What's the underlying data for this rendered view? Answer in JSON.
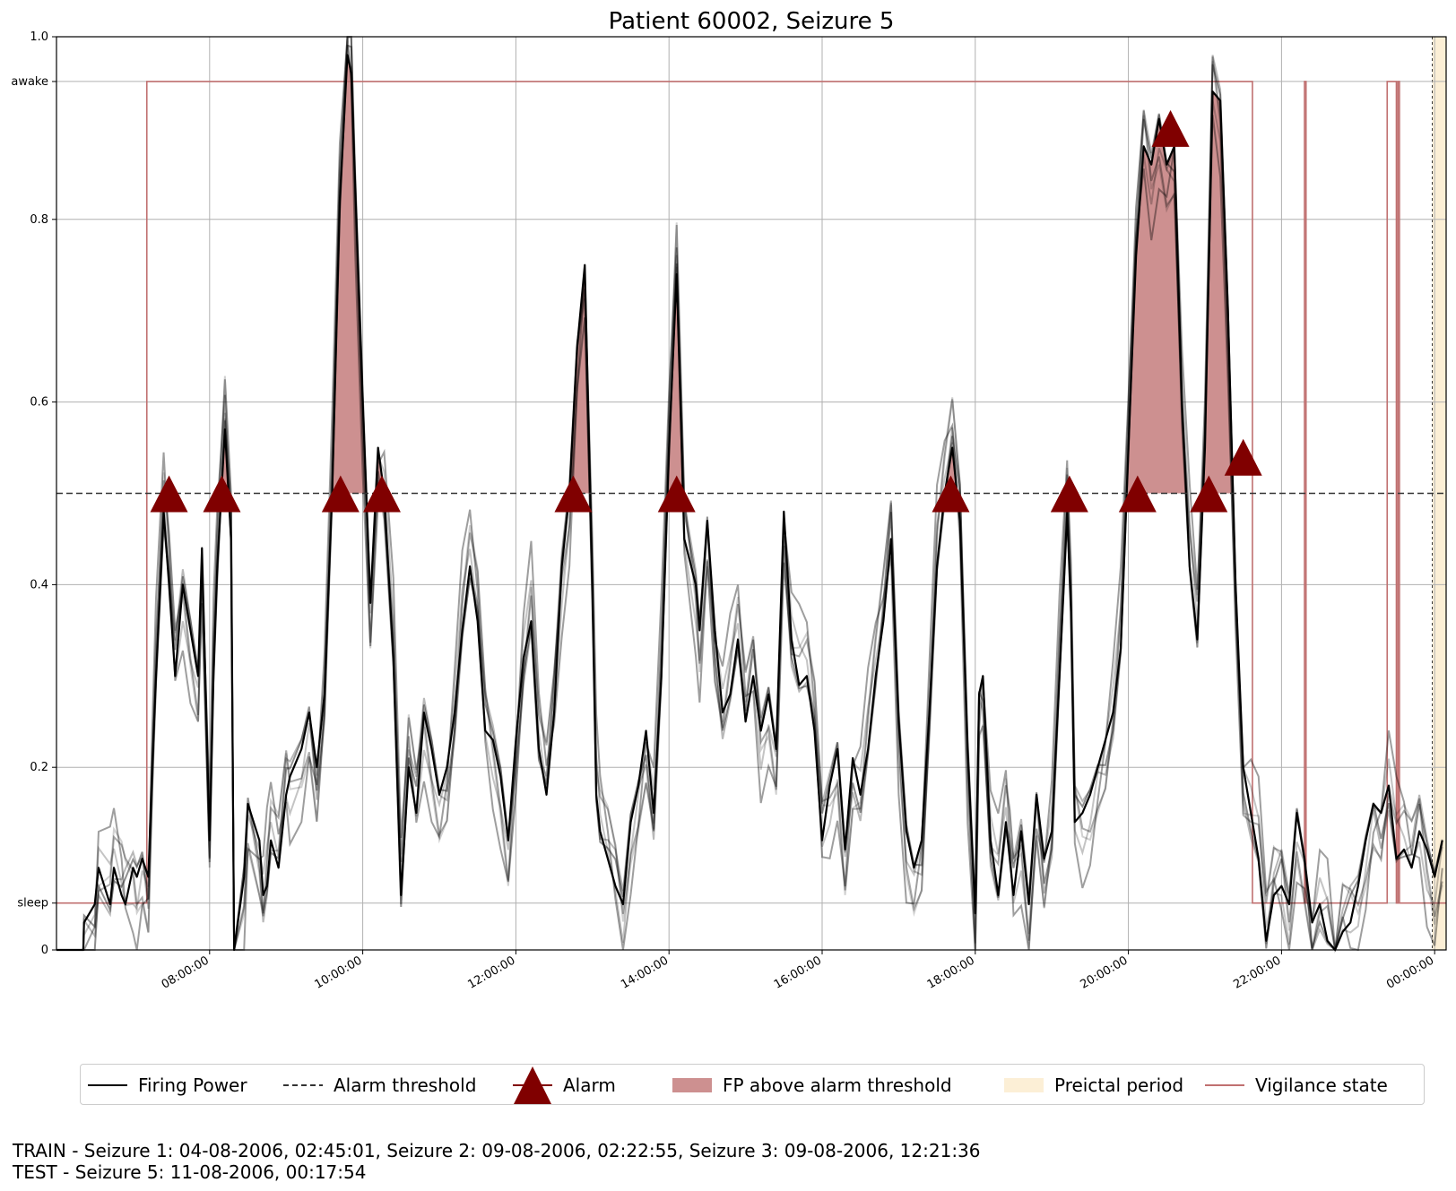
{
  "chart_data": {
    "type": "line",
    "title": "Patient 60002, Seizure 5",
    "ylim": [
      0,
      1
    ],
    "y_ticks": [
      {
        "value": 0,
        "label": "0"
      },
      {
        "value": 0.0513,
        "label": "sleep"
      },
      {
        "value": 0.2,
        "label": "0.2"
      },
      {
        "value": 0.4,
        "label": "0.4"
      },
      {
        "value": 0.6,
        "label": "0.6"
      },
      {
        "value": 0.8,
        "label": "0.8"
      },
      {
        "value": 0.951,
        "label": "awake"
      },
      {
        "value": 1.0,
        "label": "1.0"
      }
    ],
    "xlim_hours": [
      6.0,
      24.15
    ],
    "x_ticks": [
      {
        "value": 8,
        "label": "08:00:00"
      },
      {
        "value": 10,
        "label": "10:00:00"
      },
      {
        "value": 12,
        "label": "12:00:00"
      },
      {
        "value": 14,
        "label": "14:00:00"
      },
      {
        "value": 16,
        "label": "16:00:00"
      },
      {
        "value": 18,
        "label": "18:00:00"
      },
      {
        "value": 20,
        "label": "20:00:00"
      },
      {
        "value": 22,
        "label": "22:00:00"
      },
      {
        "value": 24,
        "label": "00:00:00"
      }
    ],
    "grid": true,
    "legend_position": "bottom",
    "alarm_threshold": 0.5,
    "preictal_period_hours": [
      23.97,
      24.15
    ],
    "firing_power": {
      "name": "Firing Power",
      "x_hours": [
        6.0,
        6.35,
        6.36,
        6.5,
        6.55,
        6.7,
        6.75,
        6.85,
        6.9,
        7.0,
        7.05,
        7.12,
        7.2,
        7.25,
        7.3,
        7.4,
        7.47,
        7.55,
        7.65,
        7.75,
        7.85,
        7.9,
        8.0,
        8.05,
        8.1,
        8.2,
        8.28,
        8.32,
        8.45,
        8.5,
        8.65,
        8.7,
        8.75,
        8.8,
        8.9,
        9.0,
        9.05,
        9.2,
        9.3,
        9.4,
        9.5,
        9.6,
        9.7,
        9.8,
        9.85,
        9.9,
        10.0,
        10.1,
        10.2,
        10.28,
        10.4,
        10.5,
        10.6,
        10.7,
        10.8,
        10.9,
        11.0,
        11.1,
        11.2,
        11.3,
        11.4,
        11.5,
        11.6,
        11.7,
        11.8,
        11.9,
        12.0,
        12.1,
        12.2,
        12.3,
        12.4,
        12.5,
        12.6,
        12.7,
        12.8,
        12.9,
        13.0,
        13.05,
        13.1,
        13.2,
        13.3,
        13.4,
        13.5,
        13.6,
        13.7,
        13.8,
        13.9,
        14.0,
        14.1,
        14.2,
        14.35,
        14.4,
        14.5,
        14.6,
        14.7,
        14.8,
        14.9,
        15.0,
        15.1,
        15.2,
        15.3,
        15.4,
        15.5,
        15.6,
        15.7,
        15.8,
        15.9,
        16.0,
        16.1,
        16.2,
        16.3,
        16.4,
        16.5,
        16.6,
        16.7,
        16.8,
        16.9,
        17.0,
        17.1,
        17.2,
        17.3,
        17.4,
        17.5,
        17.6,
        17.7,
        17.8,
        17.9,
        18.0,
        18.05,
        18.1,
        18.2,
        18.3,
        18.4,
        18.45,
        18.5,
        18.6,
        18.7,
        18.8,
        18.9,
        19.0,
        19.1,
        19.2,
        19.25,
        19.3,
        19.4,
        19.5,
        19.6,
        19.7,
        19.8,
        19.9,
        20.0,
        20.1,
        20.2,
        20.3,
        20.4,
        20.5,
        20.6,
        20.7,
        20.8,
        20.9,
        21.0,
        21.1,
        21.2,
        21.3,
        21.4,
        21.5,
        21.6,
        21.7,
        21.8,
        21.9,
        22.0,
        22.1,
        22.2,
        22.3,
        22.4,
        22.5,
        22.6,
        22.7,
        22.8,
        22.9,
        23.0,
        23.1,
        23.2,
        23.3,
        23.4,
        23.5,
        23.6,
        23.7,
        23.8,
        23.9,
        24.0,
        24.1
      ],
      "values": [
        0.0,
        0.0,
        0.03,
        0.05,
        0.09,
        0.05,
        0.09,
        0.06,
        0.05,
        0.09,
        0.08,
        0.1,
        0.08,
        0.2,
        0.3,
        0.48,
        0.4,
        0.3,
        0.4,
        0.35,
        0.3,
        0.44,
        0.12,
        0.3,
        0.42,
        0.57,
        0.45,
        0.0,
        0.08,
        0.16,
        0.12,
        0.06,
        0.07,
        0.12,
        0.09,
        0.17,
        0.19,
        0.22,
        0.26,
        0.2,
        0.28,
        0.5,
        0.82,
        0.98,
        0.96,
        0.84,
        0.6,
        0.38,
        0.55,
        0.5,
        0.32,
        0.06,
        0.2,
        0.15,
        0.26,
        0.22,
        0.17,
        0.2,
        0.26,
        0.35,
        0.42,
        0.36,
        0.24,
        0.23,
        0.19,
        0.12,
        0.23,
        0.32,
        0.36,
        0.22,
        0.17,
        0.26,
        0.42,
        0.5,
        0.66,
        0.75,
        0.4,
        0.17,
        0.13,
        0.1,
        0.07,
        0.05,
        0.14,
        0.18,
        0.24,
        0.15,
        0.3,
        0.55,
        0.74,
        0.45,
        0.4,
        0.35,
        0.47,
        0.35,
        0.26,
        0.28,
        0.34,
        0.25,
        0.3,
        0.24,
        0.28,
        0.22,
        0.48,
        0.34,
        0.29,
        0.3,
        0.24,
        0.12,
        0.18,
        0.22,
        0.11,
        0.21,
        0.17,
        0.22,
        0.3,
        0.36,
        0.45,
        0.25,
        0.13,
        0.09,
        0.12,
        0.26,
        0.42,
        0.5,
        0.55,
        0.47,
        0.22,
        0.04,
        0.28,
        0.3,
        0.12,
        0.06,
        0.14,
        0.1,
        0.06,
        0.13,
        0.05,
        0.17,
        0.1,
        0.13,
        0.3,
        0.48,
        0.37,
        0.14,
        0.15,
        0.17,
        0.2,
        0.23,
        0.26,
        0.33,
        0.55,
        0.76,
        0.88,
        0.86,
        0.91,
        0.86,
        0.88,
        0.6,
        0.42,
        0.34,
        0.55,
        0.94,
        0.93,
        0.7,
        0.4,
        0.2,
        0.15,
        0.1,
        0.01,
        0.06,
        0.07,
        0.05,
        0.15,
        0.1,
        0.03,
        0.05,
        0.01,
        0.0,
        0.02,
        0.03,
        0.07,
        0.12,
        0.16,
        0.15,
        0.18,
        0.1,
        0.11,
        0.09,
        0.13,
        0.11,
        0.08,
        0.12
      ]
    },
    "alarms": [
      {
        "x_hours": 7.47,
        "y": 0.5
      },
      {
        "x_hours": 8.16,
        "y": 0.5
      },
      {
        "x_hours": 9.71,
        "y": 0.5
      },
      {
        "x_hours": 10.25,
        "y": 0.5
      },
      {
        "x_hours": 12.75,
        "y": 0.5
      },
      {
        "x_hours": 14.1,
        "y": 0.5
      },
      {
        "x_hours": 17.68,
        "y": 0.5
      },
      {
        "x_hours": 19.23,
        "y": 0.5
      },
      {
        "x_hours": 20.12,
        "y": 0.5
      },
      {
        "x_hours": 20.55,
        "y": 0.9
      },
      {
        "x_hours": 21.05,
        "y": 0.5
      },
      {
        "x_hours": 21.5,
        "y": 0.54
      }
    ],
    "vigilance_state": [
      [
        6.0,
        "sleep"
      ],
      [
        7.18,
        "awake"
      ],
      [
        21.62,
        "sleep"
      ],
      [
        22.3,
        "awake"
      ],
      [
        22.32,
        "sleep"
      ],
      [
        23.38,
        "awake"
      ],
      [
        23.5,
        "sleep"
      ],
      [
        23.52,
        "awake"
      ],
      [
        23.54,
        "sleep"
      ],
      [
        24.15,
        "sleep"
      ]
    ],
    "legend": [
      "Firing Power",
      "Alarm threshold",
      "Alarm",
      "FP above alarm threshold",
      "Preictal period",
      "Vigilance state"
    ]
  },
  "footer": {
    "train": "TRAIN - Seizure 1: 04-08-2006, 02:45:01, Seizure 2: 09-08-2006, 02:22:55, Seizure 3: 09-08-2006, 12:21:36",
    "test": "TEST - Seizure 5: 11-08-2006, 00:17:54"
  },
  "colors": {
    "firing_power": "#000000",
    "threshold": "#000000",
    "alarm": "#800000",
    "fp_fill": "#cd9090",
    "preictal": "#fcefd6",
    "vigilance": "#c07070",
    "grid": "#b0b0b0"
  }
}
